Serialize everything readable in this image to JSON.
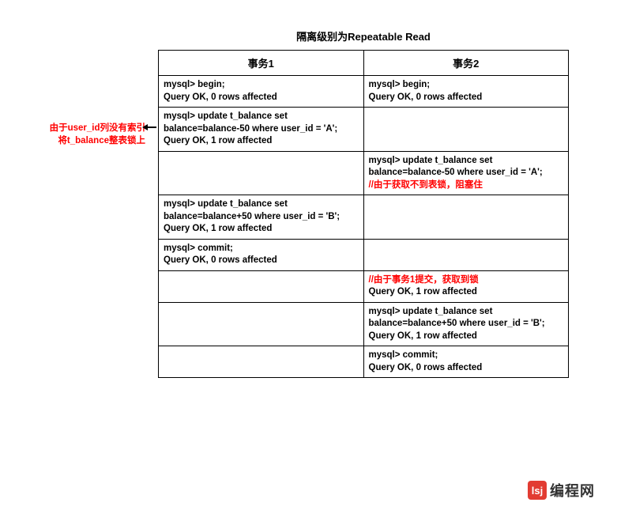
{
  "title": "隔离级别为Repeatable Read",
  "headers": {
    "col1": "事务1",
    "col2": "事务2"
  },
  "annotation": {
    "line1": "由于user_id列没有索引",
    "line2": "将t_balance整表锁上"
  },
  "rows": [
    {
      "c1": [
        {
          "t": "mysql> begin;",
          "c": "b"
        },
        {
          "t": "Query OK, 0 rows affected",
          "c": "b"
        }
      ],
      "c2": [
        {
          "t": "mysql> begin;",
          "c": "b"
        },
        {
          "t": "Query OK, 0 rows affected",
          "c": "b"
        }
      ]
    },
    {
      "c1": [
        {
          "t": "mysql> update t_balance set balance=balance-50 where user_id = 'A';",
          "c": "b"
        },
        {
          "t": "Query OK, 1 row affected",
          "c": "b"
        }
      ],
      "c2": []
    },
    {
      "c1": [],
      "c2": [
        {
          "t": "mysql> update t_balance set balance=balance-50 where user_id = 'A';",
          "c": "b"
        },
        {
          "t": "//由于获取不到表锁，阻塞住",
          "c": "red"
        }
      ]
    },
    {
      "c1": [
        {
          "t": "mysql>  update t_balance set balance=balance+50 where user_id = 'B';",
          "c": "b"
        },
        {
          "t": "Query OK, 1 row affected",
          "c": "b"
        }
      ],
      "c2": []
    },
    {
      "c1": [
        {
          "t": "mysql> commit;",
          "c": "b"
        },
        {
          "t": "Query OK, 0 rows affected",
          "c": "b"
        }
      ],
      "c2": []
    },
    {
      "c1": [],
      "c2": [
        {
          "t": "//由于事务1提交，获取到锁",
          "c": "red"
        },
        {
          "t": "Query OK, 1 row affected",
          "c": "b"
        }
      ]
    },
    {
      "c1": [],
      "c2": [
        {
          "t": "mysql>  update t_balance set balance=balance+50 where user_id = 'B';",
          "c": "b"
        },
        {
          "t": "Query OK, 1 row affected",
          "c": "b"
        }
      ]
    },
    {
      "c1": [],
      "c2": [
        {
          "t": "mysql> commit;",
          "c": "b"
        },
        {
          "t": "Query OK, 0 rows affected",
          "c": "b"
        }
      ]
    }
  ],
  "logo": {
    "badge": "lsj",
    "text": "编程网"
  },
  "colors": {
    "border": "#000000",
    "red": "#ff0000",
    "logo_bg": "#e23c32",
    "background": "#ffffff"
  }
}
